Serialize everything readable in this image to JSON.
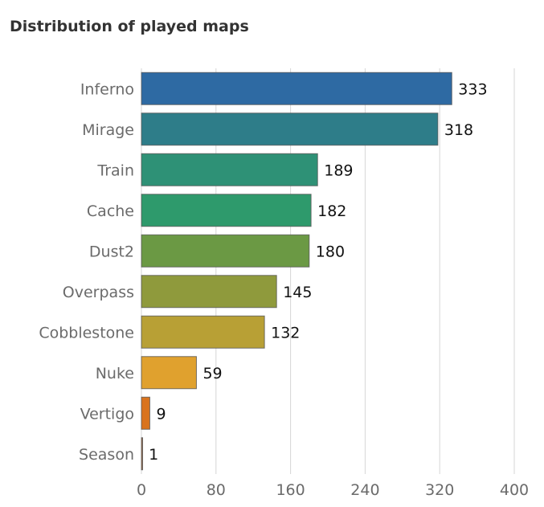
{
  "chart_data": {
    "type": "bar",
    "orientation": "horizontal",
    "title": "Distribution of played maps",
    "xlabel": "",
    "ylabel": "",
    "categories": [
      "Inferno",
      "Mirage",
      "Train",
      "Cache",
      "Dust2",
      "Overpass",
      "Cobblestone",
      "Nuke",
      "Vertigo",
      "Season"
    ],
    "values": [
      333,
      318,
      189,
      182,
      180,
      145,
      132,
      59,
      9,
      1
    ],
    "colors": [
      "#2e6aa3",
      "#2e7d89",
      "#2e9176",
      "#2e9a6c",
      "#6b9944",
      "#8f9a3c",
      "#b8a035",
      "#e0a12e",
      "#d9731d",
      "#a06a45"
    ],
    "xlim": [
      0,
      400
    ],
    "xticks": [
      0,
      80,
      160,
      240,
      320,
      400
    ],
    "grid": true,
    "legend": "none"
  }
}
